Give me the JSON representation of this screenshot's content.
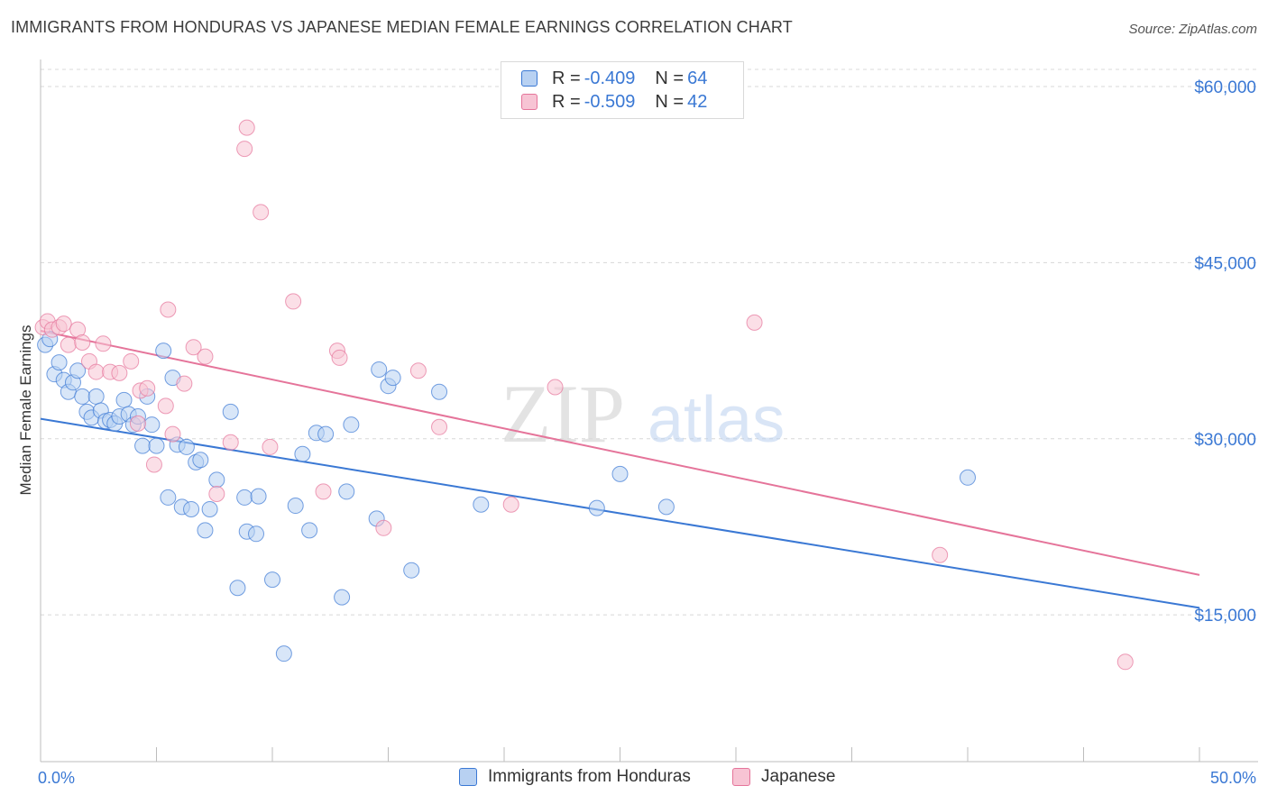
{
  "title": "IMMIGRANTS FROM HONDURAS VS JAPANESE MEDIAN FEMALE EARNINGS CORRELATION CHART",
  "source": "Source: ZipAtlas.com",
  "watermark": {
    "zip": "ZIP",
    "atlas": "atlas"
  },
  "colors": {
    "blue": "#3a78d4",
    "pink": "#e5749a",
    "blue_fill": "#b8d1f2",
    "pink_fill": "#f7c4d4"
  },
  "stats": [
    {
      "r_label": "R = ",
      "r_value": "-0.409",
      "n_label": "N = ",
      "n_value": "64"
    },
    {
      "r_label": "R = ",
      "r_value": "-0.509",
      "n_label": "N = ",
      "n_value": "42"
    }
  ],
  "legend": [
    "Immigrants from Honduras",
    "Japanese"
  ],
  "chart_data": {
    "type": "scatter",
    "title": "IMMIGRANTS FROM HONDURAS VS JAPANESE MEDIAN FEMALE EARNINGS CORRELATION CHART",
    "xlabel": "",
    "ylabel": "Median Female Earnings",
    "xlim": [
      0,
      50
    ],
    "ylim": [
      2500,
      62000
    ],
    "x_tick_labels": [
      "0.0%",
      "50.0%"
    ],
    "y_ticks": [
      15000,
      30000,
      45000,
      60000
    ],
    "y_tick_labels": [
      "$15,000",
      "$30,000",
      "$45,000",
      "$60,000"
    ],
    "grid": true,
    "legend_position": "bottom-center",
    "series": [
      {
        "name": "Immigrants from Honduras",
        "color": "#3a78d4",
        "trend": {
          "x": [
            0,
            50
          ],
          "y": [
            31700,
            15600
          ]
        },
        "points": [
          [
            0.2,
            38000
          ],
          [
            0.4,
            38500
          ],
          [
            0.6,
            35500
          ],
          [
            0.8,
            36500
          ],
          [
            1.0,
            35000
          ],
          [
            1.2,
            34000
          ],
          [
            1.4,
            34800
          ],
          [
            1.6,
            35800
          ],
          [
            1.8,
            33600
          ],
          [
            2.0,
            32300
          ],
          [
            2.2,
            31800
          ],
          [
            2.4,
            33600
          ],
          [
            2.6,
            32400
          ],
          [
            2.8,
            31500
          ],
          [
            3.0,
            31600
          ],
          [
            3.2,
            31300
          ],
          [
            3.4,
            31900
          ],
          [
            3.6,
            33300
          ],
          [
            3.8,
            32100
          ],
          [
            4.0,
            31200
          ],
          [
            4.2,
            31900
          ],
          [
            4.4,
            29400
          ],
          [
            4.6,
            33600
          ],
          [
            4.8,
            31200
          ],
          [
            5.0,
            29400
          ],
          [
            5.3,
            37500
          ],
          [
            5.5,
            25000
          ],
          [
            5.7,
            35200
          ],
          [
            5.9,
            29500
          ],
          [
            6.1,
            24200
          ],
          [
            6.3,
            29300
          ],
          [
            6.5,
            24000
          ],
          [
            6.7,
            28000
          ],
          [
            6.9,
            28200
          ],
          [
            7.1,
            22200
          ],
          [
            7.3,
            24000
          ],
          [
            7.6,
            26500
          ],
          [
            8.2,
            32300
          ],
          [
            8.5,
            17300
          ],
          [
            8.8,
            25000
          ],
          [
            8.9,
            22100
          ],
          [
            9.3,
            21900
          ],
          [
            9.4,
            25100
          ],
          [
            10.0,
            18000
          ],
          [
            10.5,
            11700
          ],
          [
            11.0,
            24300
          ],
          [
            11.3,
            28700
          ],
          [
            11.6,
            22200
          ],
          [
            11.9,
            30500
          ],
          [
            12.3,
            30400
          ],
          [
            13.0,
            16500
          ],
          [
            13.2,
            25500
          ],
          [
            13.4,
            31200
          ],
          [
            14.5,
            23200
          ],
          [
            14.6,
            35900
          ],
          [
            15.0,
            34500
          ],
          [
            15.2,
            35200
          ],
          [
            16.0,
            18800
          ],
          [
            17.2,
            34000
          ],
          [
            19.0,
            24400
          ],
          [
            24.0,
            24100
          ],
          [
            25.0,
            27000
          ],
          [
            27.0,
            24200
          ],
          [
            40.0,
            26700
          ]
        ]
      },
      {
        "name": "Japanese",
        "color": "#e5749a",
        "trend": {
          "x": [
            0,
            50
          ],
          "y": [
            39200,
            18400
          ]
        },
        "points": [
          [
            0.1,
            39500
          ],
          [
            0.3,
            40000
          ],
          [
            0.5,
            39300
          ],
          [
            0.8,
            39500
          ],
          [
            1.0,
            39800
          ],
          [
            1.2,
            38000
          ],
          [
            1.6,
            39300
          ],
          [
            1.8,
            38200
          ],
          [
            2.1,
            36600
          ],
          [
            2.4,
            35700
          ],
          [
            2.7,
            38100
          ],
          [
            3.0,
            35700
          ],
          [
            3.4,
            35600
          ],
          [
            3.9,
            36600
          ],
          [
            4.2,
            31300
          ],
          [
            4.3,
            34100
          ],
          [
            4.6,
            34300
          ],
          [
            4.9,
            27800
          ],
          [
            5.4,
            32800
          ],
          [
            5.5,
            41000
          ],
          [
            5.7,
            30400
          ],
          [
            6.2,
            34700
          ],
          [
            6.6,
            37800
          ],
          [
            7.1,
            37000
          ],
          [
            7.6,
            25300
          ],
          [
            8.2,
            29700
          ],
          [
            8.9,
            56500
          ],
          [
            8.8,
            54700
          ],
          [
            9.5,
            49300
          ],
          [
            9.9,
            29300
          ],
          [
            10.9,
            41700
          ],
          [
            12.2,
            25500
          ],
          [
            12.8,
            37500
          ],
          [
            12.9,
            36900
          ],
          [
            14.8,
            22400
          ],
          [
            16.3,
            35800
          ],
          [
            17.2,
            31000
          ],
          [
            20.3,
            24400
          ],
          [
            22.2,
            34400
          ],
          [
            30.8,
            39900
          ],
          [
            38.8,
            20100
          ],
          [
            46.8,
            11000
          ]
        ]
      }
    ]
  }
}
